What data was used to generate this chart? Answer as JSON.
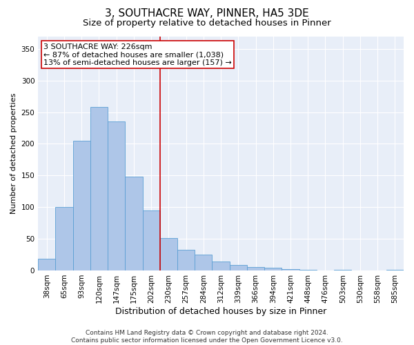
{
  "title1": "3, SOUTHACRE WAY, PINNER, HA5 3DE",
  "title2": "Size of property relative to detached houses in Pinner",
  "xlabel": "Distribution of detached houses by size in Pinner",
  "ylabel": "Number of detached properties",
  "categories": [
    "38sqm",
    "65sqm",
    "93sqm",
    "120sqm",
    "147sqm",
    "175sqm",
    "202sqm",
    "230sqm",
    "257sqm",
    "284sqm",
    "312sqm",
    "339sqm",
    "366sqm",
    "394sqm",
    "421sqm",
    "448sqm",
    "476sqm",
    "503sqm",
    "530sqm",
    "558sqm",
    "585sqm"
  ],
  "values": [
    19,
    100,
    205,
    258,
    235,
    148,
    95,
    51,
    33,
    25,
    14,
    9,
    5,
    4,
    2,
    1,
    0,
    1,
    0,
    0,
    1
  ],
  "bar_color": "#aec6e8",
  "bar_edge_color": "#5a9fd4",
  "vline_x_index": 6.5,
  "vline_color": "#cc0000",
  "annotation_text": "3 SOUTHACRE WAY: 226sqm\n← 87% of detached houses are smaller (1,038)\n13% of semi-detached houses are larger (157) →",
  "annotation_box_color": "#ffffff",
  "annotation_box_edge": "#cc0000",
  "ylim": [
    0,
    370
  ],
  "yticks": [
    0,
    50,
    100,
    150,
    200,
    250,
    300,
    350
  ],
  "background_color": "#e8eef8",
  "footer_text": "Contains HM Land Registry data © Crown copyright and database right 2024.\nContains public sector information licensed under the Open Government Licence v3.0.",
  "title1_fontsize": 11,
  "title2_fontsize": 9.5,
  "xlabel_fontsize": 9,
  "ylabel_fontsize": 8,
  "tick_fontsize": 7.5,
  "annotation_fontsize": 8,
  "footer_fontsize": 6.5
}
